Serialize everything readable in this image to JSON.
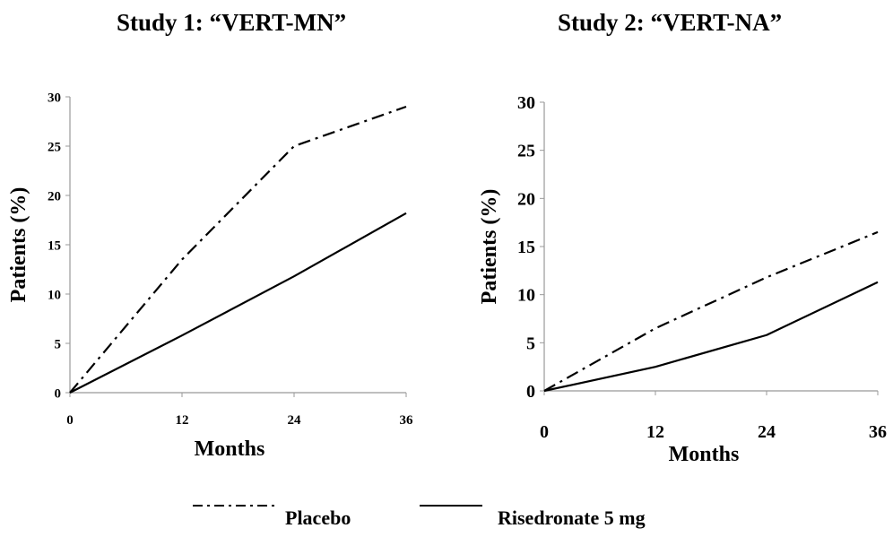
{
  "chart_data": [
    {
      "type": "line",
      "title": "Study 1: “VERT-MN”",
      "xlabel": "Months",
      "ylabel": "Patients (%)",
      "x": [
        0,
        12,
        24,
        36
      ],
      "xticks": [
        "0",
        "12",
        "24",
        "36"
      ],
      "yticks": [
        "0",
        "5",
        "10",
        "15",
        "20",
        "25",
        "30"
      ],
      "xlim": [
        0,
        36
      ],
      "ylim": [
        0,
        30
      ],
      "grid": false,
      "series": [
        {
          "name": "Placebo",
          "values": [
            0,
            13.5,
            25,
            29
          ],
          "style": "dash-dot",
          "color": "#000000"
        },
        {
          "name": "Risedronate 5 mg",
          "values": [
            0,
            5.8,
            11.8,
            18.2
          ],
          "style": "solid",
          "color": "#000000"
        }
      ]
    },
    {
      "type": "line",
      "title": "Study 2: “VERT-NA”",
      "xlabel": "Months",
      "ylabel": "Patients (%)",
      "x": [
        0,
        12,
        24,
        36
      ],
      "xticks": [
        "0",
        "12",
        "24",
        "36"
      ],
      "yticks": [
        "0",
        "5",
        "10",
        "15",
        "20",
        "25",
        "30"
      ],
      "xlim": [
        0,
        36
      ],
      "ylim": [
        0,
        30
      ],
      "grid": false,
      "series": [
        {
          "name": "Placebo",
          "values": [
            0,
            6.5,
            11.8,
            16.5
          ],
          "style": "dash-dot",
          "color": "#000000"
        },
        {
          "name": "Risedronate 5 mg",
          "values": [
            0,
            2.5,
            5.8,
            11.3
          ],
          "style": "solid",
          "color": "#000000"
        }
      ]
    }
  ],
  "legend": {
    "placebo_label": "Placebo",
    "risedronate_label": "Risedronate 5 mg",
    "placement": "bottom"
  }
}
